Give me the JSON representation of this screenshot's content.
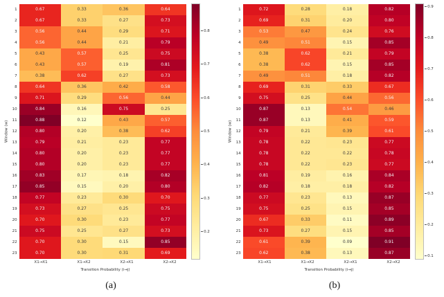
{
  "figure": {
    "captions": {
      "a": "(a)",
      "b": "(b)"
    }
  },
  "colormap": {
    "name": "YlOrRd",
    "stops": [
      "#ffffcc",
      "#ffeda0",
      "#fed976",
      "#feb24c",
      "#fd8d3c",
      "#fc4e2a",
      "#e31a1c",
      "#bd0026",
      "#800026"
    ],
    "annot_dark": "#3a3a3a",
    "annot_light": "#f5f5f5"
  },
  "chart_data": [
    {
      "type": "heatmap",
      "panel": "a",
      "xlabel": "Transition Probability (i→j)",
      "ylabel": "Window (w)",
      "x_ticklabels": [
        "X1→X1",
        "X1→X2",
        "X2→X1",
        "X2→X2"
      ],
      "y_ticklabels": [
        "1",
        "2",
        "3",
        "4",
        "5",
        "6",
        "7",
        "8",
        "9",
        "10",
        "11",
        "12",
        "13",
        "14",
        "15",
        "16",
        "17",
        "18",
        "19",
        "20",
        "21",
        "22",
        "23"
      ],
      "vmin": 0.12,
      "vmax": 0.88,
      "colorbar_ticks": [
        "0.8",
        "0.7",
        "0.6",
        "0.5",
        "0.4",
        "0.3",
        "0.2"
      ],
      "values": [
        [
          0.67,
          0.33,
          0.36,
          0.64
        ],
        [
          0.67,
          0.33,
          0.27,
          0.73
        ],
        [
          0.56,
          0.44,
          0.29,
          0.71
        ],
        [
          0.56,
          0.44,
          0.21,
          0.79
        ],
        [
          0.43,
          0.57,
          0.25,
          0.75
        ],
        [
          0.43,
          0.57,
          0.19,
          0.81
        ],
        [
          0.38,
          0.62,
          0.27,
          0.73
        ],
        [
          0.64,
          0.36,
          0.42,
          0.58
        ],
        [
          0.71,
          0.29,
          0.56,
          0.44
        ],
        [
          0.84,
          0.16,
          0.75,
          0.25
        ],
        [
          0.88,
          0.12,
          0.43,
          0.57
        ],
        [
          0.8,
          0.2,
          0.38,
          0.62
        ],
        [
          0.79,
          0.21,
          0.23,
          0.77
        ],
        [
          0.8,
          0.2,
          0.23,
          0.77
        ],
        [
          0.8,
          0.2,
          0.23,
          0.77
        ],
        [
          0.83,
          0.17,
          0.18,
          0.82
        ],
        [
          0.85,
          0.15,
          0.2,
          0.8
        ],
        [
          0.77,
          0.23,
          0.3,
          0.7
        ],
        [
          0.73,
          0.27,
          0.25,
          0.75
        ],
        [
          0.7,
          0.3,
          0.23,
          0.77
        ],
        [
          0.75,
          0.25,
          0.27,
          0.73
        ],
        [
          0.7,
          0.3,
          0.15,
          0.85
        ],
        [
          0.7,
          0.3,
          0.31,
          0.69
        ]
      ]
    },
    {
      "type": "heatmap",
      "panel": "b",
      "xlabel": "Transition Probability (i→j)",
      "ylabel": "Window (w)",
      "x_ticklabels": [
        "X1→X1",
        "X1→X2",
        "X2→X1",
        "X2→X2"
      ],
      "y_ticklabels": [
        "1",
        "2",
        "3",
        "4",
        "5",
        "6",
        "7",
        "8",
        "9",
        "10",
        "11",
        "12",
        "13",
        "14",
        "15",
        "16",
        "17",
        "18",
        "19",
        "20",
        "21",
        "22",
        "23"
      ],
      "vmin": 0.09,
      "vmax": 0.91,
      "colorbar_ticks": [
        "0.9",
        "0.8",
        "0.7",
        "0.6",
        "0.5",
        "0.4",
        "0.3",
        "0.2",
        "0.1"
      ],
      "values": [
        [
          0.72,
          0.28,
          0.18,
          0.82
        ],
        [
          0.69,
          0.31,
          0.2,
          0.8
        ],
        [
          0.53,
          0.47,
          0.24,
          0.76
        ],
        [
          0.49,
          0.51,
          0.15,
          0.85
        ],
        [
          0.38,
          0.62,
          0.21,
          0.79
        ],
        [
          0.38,
          0.62,
          0.15,
          0.85
        ],
        [
          0.49,
          0.51,
          0.18,
          0.82
        ],
        [
          0.69,
          0.31,
          0.33,
          0.67
        ],
        [
          0.75,
          0.25,
          0.44,
          0.56
        ],
        [
          0.87,
          0.13,
          0.54,
          0.46
        ],
        [
          0.87,
          0.13,
          0.41,
          0.59
        ],
        [
          0.79,
          0.21,
          0.39,
          0.61
        ],
        [
          0.78,
          0.22,
          0.23,
          0.77
        ],
        [
          0.78,
          0.22,
          0.22,
          0.78
        ],
        [
          0.78,
          0.22,
          0.23,
          0.77
        ],
        [
          0.81,
          0.19,
          0.16,
          0.84
        ],
        [
          0.82,
          0.18,
          0.18,
          0.82
        ],
        [
          0.77,
          0.23,
          0.13,
          0.87
        ],
        [
          0.75,
          0.25,
          0.15,
          0.85
        ],
        [
          0.67,
          0.33,
          0.11,
          0.89
        ],
        [
          0.73,
          0.27,
          0.15,
          0.85
        ],
        [
          0.61,
          0.39,
          0.09,
          0.91
        ],
        [
          0.62,
          0.38,
          0.13,
          0.87
        ]
      ]
    }
  ]
}
